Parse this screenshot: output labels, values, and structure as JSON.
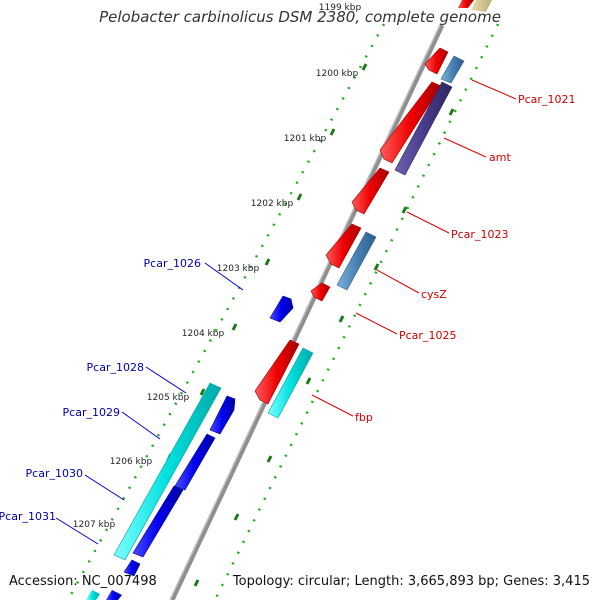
{
  "title": "Pelobacter carbinolicus DSM 2380, complete genome",
  "accession": "Accession: NC_007498",
  "summary": "Topology: circular; Length: 3,665,893 bp; Genes: 3,415",
  "colors": {
    "backbone": "#8f8f8f",
    "scale_dots": "#22aa22",
    "tick": "#1c7a1c",
    "red_gene": "#ee0000",
    "blue_gene": "#0000ee",
    "cyan_gene": "#00dddd",
    "steel_gene": "#4682b4",
    "purple_gene": "#483d8b",
    "forward_label": "#cc0000",
    "reverse_label": "#0000aa"
  },
  "scale_labels": [
    "1199 kbp",
    "1200 kbp",
    "1201 kbp",
    "1202 kbp",
    "1203 kbp",
    "1204 kbp",
    "1205 kbp",
    "1206 kbp",
    "1207 kbp"
  ],
  "forward_gene_labels": [
    "Pcar_1021",
    "amt",
    "Pcar_1023",
    "cysZ",
    "Pcar_1025",
    "fbp"
  ],
  "reverse_gene_labels": [
    "Pcar_1026",
    "Pcar_1028",
    "Pcar_1029",
    "Pcar_1030",
    "Pcar_1031"
  ]
}
